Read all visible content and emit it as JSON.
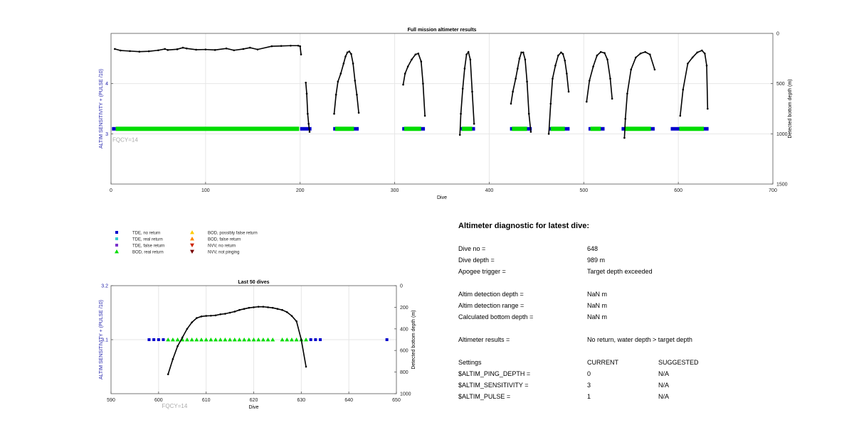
{
  "chart_data": [
    {
      "type": "scatter",
      "title": "Full mission altimeter results",
      "xlabel": "Dive",
      "ylabel": "ALTIM SENSITIVITY + (PULSE /10)",
      "y2label": "Detected bottom depth (m)",
      "annotation": "FQCY=14",
      "xlim": [
        0,
        700
      ],
      "ylim": [
        2,
        5
      ],
      "y2lim": [
        1500,
        0
      ],
      "y2_reversed": true,
      "grid": true,
      "xticks": [
        "0",
        "100",
        "200",
        "300",
        "400",
        "500",
        "600",
        "700"
      ],
      "yticks": [
        "3",
        "4"
      ],
      "y2ticks": [
        "0",
        "500",
        "1000",
        "1500"
      ],
      "settings_level": 3.1,
      "tde_no_return_segments": [
        [
          1,
          5
        ],
        [
          200,
          212
        ],
        [
          235,
          262
        ],
        [
          308,
          332
        ],
        [
          370,
          385
        ],
        [
          422,
          445
        ],
        [
          463,
          485
        ],
        [
          505,
          522
        ],
        [
          540,
          575
        ],
        [
          592,
          632
        ]
      ],
      "bod_real_return_segments": [
        [
          5,
          199
        ],
        [
          237,
          257
        ],
        [
          310,
          328
        ],
        [
          371,
          382
        ],
        [
          424,
          440
        ],
        [
          465,
          480
        ],
        [
          507,
          518
        ],
        [
          543,
          571
        ],
        [
          601,
          627
        ]
      ],
      "depth_series": [
        {
          "x": [
            4,
            10,
            20,
            30,
            40,
            50,
            57,
            60,
            70,
            76,
            80,
            90,
            100,
            110,
            122,
            130,
            140,
            147,
            155,
            170,
            180,
            190,
            198,
            200,
            201
          ],
          "y": [
            155,
            170,
            176,
            182,
            178,
            168,
            155,
            165,
            158,
            142,
            150,
            162,
            160,
            165,
            150,
            168,
            155,
            142,
            160,
            128,
            125,
            122,
            122,
            128,
            210
          ]
        },
        {
          "x": [
            206,
            207,
            208,
            209,
            210
          ],
          "y": [
            490,
            600,
            800,
            900,
            980
          ]
        },
        {
          "x": [
            236,
            238,
            240,
            243,
            246,
            248,
            250,
            252,
            254,
            256,
            258,
            260,
            262
          ],
          "y": [
            800,
            610,
            480,
            400,
            300,
            230,
            190,
            180,
            205,
            300,
            470,
            610,
            790
          ]
        },
        {
          "x": [
            309,
            311,
            314,
            318,
            322,
            325,
            328,
            330,
            332
          ],
          "y": [
            510,
            400,
            330,
            260,
            210,
            200,
            280,
            500,
            820
          ]
        },
        {
          "x": [
            369,
            370,
            372,
            374,
            376,
            378,
            380,
            382,
            384
          ],
          "y": [
            1010,
            800,
            550,
            350,
            210,
            185,
            260,
            580,
            900
          ]
        },
        {
          "x": [
            423,
            425,
            428,
            430,
            432,
            434,
            436,
            438,
            440,
            442,
            444
          ],
          "y": [
            700,
            580,
            450,
            350,
            250,
            190,
            190,
            260,
            480,
            800,
            980
          ]
        },
        {
          "x": [
            463,
            465,
            467,
            470,
            473,
            476,
            478,
            480,
            482,
            484
          ],
          "y": [
            1000,
            700,
            450,
            320,
            220,
            190,
            205,
            270,
            400,
            580
          ]
        },
        {
          "x": [
            503,
            506,
            510,
            514,
            518,
            522,
            525,
            528,
            530
          ],
          "y": [
            680,
            470,
            330,
            220,
            185,
            195,
            260,
            450,
            650
          ]
        },
        {
          "x": [
            543,
            544,
            546,
            550,
            555,
            560,
            565,
            570,
            575
          ],
          "y": [
            1040,
            850,
            600,
            360,
            240,
            200,
            185,
            210,
            360
          ]
        },
        {
          "x": [
            602,
            605,
            610,
            615,
            620,
            625,
            628,
            630,
            631
          ],
          "y": [
            820,
            560,
            300,
            240,
            190,
            170,
            200,
            320,
            750
          ]
        }
      ]
    },
    {
      "type": "scatter",
      "title": "Last 50 dives",
      "xlabel": "Dive",
      "ylabel": "ALTIM SENSITIVITY + (PULSE /10)",
      "y2label": "Detected bottom depth (m)",
      "annotation": "FQCY=14",
      "xlim": [
        590,
        650
      ],
      "ylim": [
        3,
        3.2
      ],
      "y2lim": [
        1000,
        0
      ],
      "y2_reversed": true,
      "grid": true,
      "xticks": [
        "590",
        "600",
        "610",
        "620",
        "630",
        "640",
        "650"
      ],
      "yticks": [
        "3.1",
        "3.2"
      ],
      "y2ticks": [
        "0",
        "200",
        "400",
        "600",
        "800",
        "1000"
      ],
      "settings_level": 3.1,
      "tde_no_return_dives": [
        598,
        599,
        600,
        601,
        632,
        633,
        634,
        648
      ],
      "bod_real_return_dives": [
        602,
        603,
        604,
        605,
        606,
        607,
        608,
        609,
        610,
        611,
        612,
        613,
        614,
        615,
        616,
        617,
        618,
        619,
        620,
        621,
        622,
        623,
        624,
        626,
        627,
        628,
        629,
        630,
        631
      ],
      "depth_series": [
        {
          "x": [
            602,
            603,
            604,
            605,
            606,
            607,
            608,
            609,
            610,
            611,
            612,
            613,
            614,
            615,
            616,
            617,
            618,
            619,
            620,
            621,
            622,
            623,
            624,
            625,
            626,
            627,
            628,
            629,
            630,
            631
          ],
          "y": [
            820,
            680,
            560,
            480,
            400,
            340,
            300,
            285,
            280,
            278,
            275,
            265,
            260,
            250,
            240,
            225,
            215,
            205,
            200,
            195,
            195,
            200,
            205,
            215,
            225,
            245,
            280,
            330,
            500,
            750
          ]
        }
      ]
    }
  ],
  "legend": {
    "items": [
      {
        "label": "TDE, no return",
        "color": "#0000cc",
        "shape": "square"
      },
      {
        "label": "TDE, real return",
        "color": "#33cccc",
        "shape": "square"
      },
      {
        "label": "TDE, false return",
        "color": "#7a33cc",
        "shape": "square"
      },
      {
        "label": "BOD, real return",
        "color": "#00dd00",
        "shape": "triangle-up"
      },
      {
        "label": "BOD, possibly false return",
        "color": "#ffcc00",
        "shape": "triangle-up"
      },
      {
        "label": "BOD, false return",
        "color": "#ff8800",
        "shape": "triangle-up"
      },
      {
        "label": "NVV, no return",
        "color": "#cc2200",
        "shape": "triangle-down"
      },
      {
        "label": "NVV, not pinging",
        "color": "#770000",
        "shape": "triangle-down"
      }
    ]
  },
  "diagnostic": {
    "heading": "Altimeter diagnostic for latest dive:",
    "dive_no_label": "Dive no =",
    "dive_no_value": "648",
    "dive_depth_label": "Dive depth =",
    "dive_depth_value": "989 m",
    "apogee_label": "Apogee trigger =",
    "apogee_value": "Target depth exceeded",
    "detect_depth_label": "Altim detection depth =",
    "detect_depth_value": "NaN m",
    "detect_range_label": "Altim detection range =",
    "detect_range_value": "NaN m",
    "calc_bottom_label": "Calculated bottom depth =",
    "calc_bottom_value": "NaN m",
    "results_label": "Altimeter results =",
    "results_value": "No return, water depth > target depth",
    "settings_label": "Settings",
    "current_label": "CURRENT",
    "suggested_label": "SUGGESTED",
    "ping_depth_label": "$ALTIM_PING_DEPTH =",
    "ping_depth_current": "0",
    "ping_depth_suggested": "N/A",
    "sensitivity_label": "$ALTIM_SENSITIVITY =",
    "sensitivity_current": "3",
    "sensitivity_suggested": "N/A",
    "pulse_label": "$ALTIM_PULSE =",
    "pulse_current": "1",
    "pulse_suggested": "N/A"
  },
  "colors": {
    "tde_no_return": "#0000cc",
    "bod_real_return": "#00dd00",
    "depth_line": "#000000",
    "left_axis_label": "#2222aa",
    "annotation": "#aaaaaa",
    "grid": "#e6e6e6"
  }
}
